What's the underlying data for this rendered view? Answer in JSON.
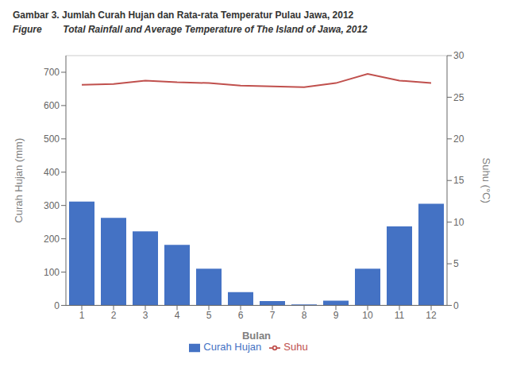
{
  "chart_data": {
    "type": "bar",
    "title": "Gambar 3. Jumlah Curah Hujan dan Rata-rata Temperatur Pulau Jawa, 2012",
    "subtitle": "Figure        Total Rainfall and Average Temperature of The Island of Jawa, 2012",
    "xlabel": "Bulan",
    "ylabel": "Curah Hujan (mm)",
    "y2label": "Suhu (°C)",
    "categories": [
      "1",
      "2",
      "3",
      "4",
      "5",
      "6",
      "7",
      "8",
      "9",
      "10",
      "11",
      "12"
    ],
    "series": [
      {
        "name": "Curah Hujan",
        "type": "bar",
        "color": "#4472C4",
        "values": [
          312,
          263,
          222,
          182,
          110,
          40,
          13,
          3,
          14,
          110,
          237,
          305
        ]
      },
      {
        "name": "Suhu",
        "type": "line",
        "color": "#C0504D",
        "axis": "y2",
        "values": [
          26.5,
          26.6,
          27.0,
          26.8,
          26.7,
          26.4,
          26.3,
          26.2,
          26.7,
          27.8,
          27.0,
          26.7
        ]
      }
    ],
    "ylim": [
      0,
      750
    ],
    "yticks": [
      0,
      100,
      200,
      300,
      400,
      500,
      600,
      700
    ],
    "y2lim": [
      0,
      30
    ],
    "y2ticks": [
      0,
      5,
      10,
      15,
      20,
      25,
      30
    ],
    "grid": true,
    "legend": "bottom"
  }
}
